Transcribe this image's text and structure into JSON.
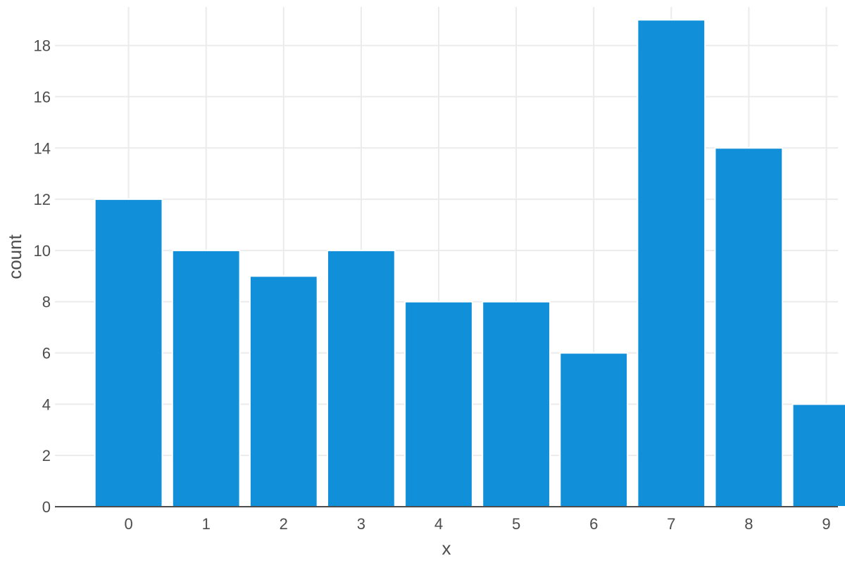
{
  "chart_data": {
    "type": "bar",
    "categories": [
      "0",
      "1",
      "2",
      "3",
      "4",
      "5",
      "6",
      "7",
      "8",
      "9"
    ],
    "values": [
      12,
      10,
      9,
      10,
      8,
      8,
      6,
      19,
      14,
      4
    ],
    "xlabel": "x",
    "ylabel": "count",
    "ylim": [
      0,
      19.5
    ],
    "yticks": [
      0,
      2,
      4,
      6,
      8,
      10,
      12,
      14,
      16,
      18
    ],
    "grid": true,
    "bar_color": "#118fd9"
  }
}
